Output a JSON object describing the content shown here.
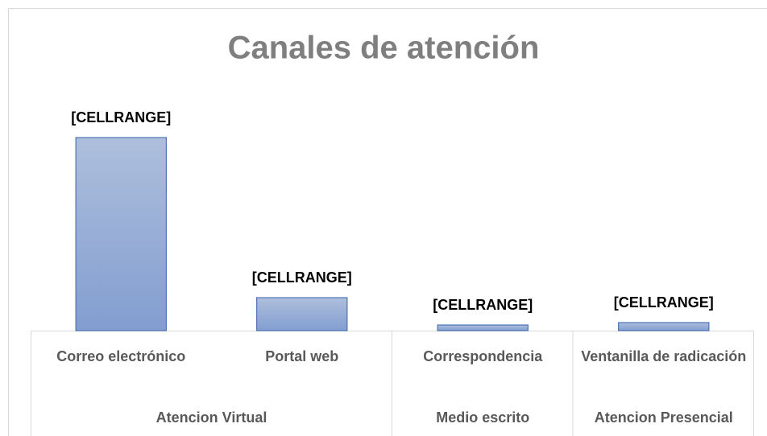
{
  "chart_data": {
    "type": "bar",
    "title": "Canales de atención",
    "groups": [
      {
        "name": "Atencion Virtual",
        "categories": [
          "Correo electrónico",
          "Portal web"
        ],
        "values": [
          240,
          41
        ],
        "value_labels": [
          "[CELLRANGE]",
          "[CELLRANGE]"
        ]
      },
      {
        "name": "Medio escrito",
        "categories": [
          "Correspondencia"
        ],
        "values": [
          7
        ],
        "value_labels": [
          "[CELLRANGE]"
        ]
      },
      {
        "name": "Atencion Presencial",
        "categories": [
          "Ventanilla de radicación"
        ],
        "values": [
          10
        ],
        "value_labels": [
          "[CELLRANGE]"
        ]
      }
    ],
    "color": "#94acd6",
    "ylim": [
      0,
      300
    ]
  }
}
